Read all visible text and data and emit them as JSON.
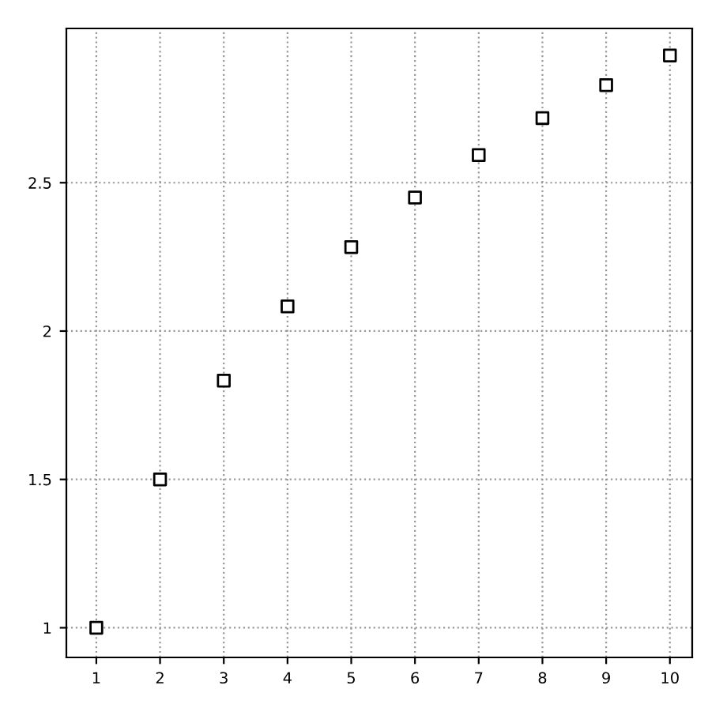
{
  "chart_data": {
    "type": "scatter",
    "x": [
      1,
      2,
      3,
      4,
      5,
      6,
      7,
      8,
      9,
      10
    ],
    "values": [
      1,
      1.5,
      1.833,
      2.083,
      2.283,
      2.45,
      2.593,
      2.718,
      2.829,
      2.929
    ],
    "color": "#000000",
    "marker": "square",
    "xlim": [
      0.53,
      10.35
    ],
    "ylim": [
      0.9,
      3.02
    ],
    "xticks": [
      1,
      2,
      3,
      4,
      5,
      6,
      7,
      8,
      9,
      10
    ],
    "yticks": [
      1,
      1.5,
      2,
      2.5
    ],
    "grid": true,
    "line_style": "dotted"
  }
}
